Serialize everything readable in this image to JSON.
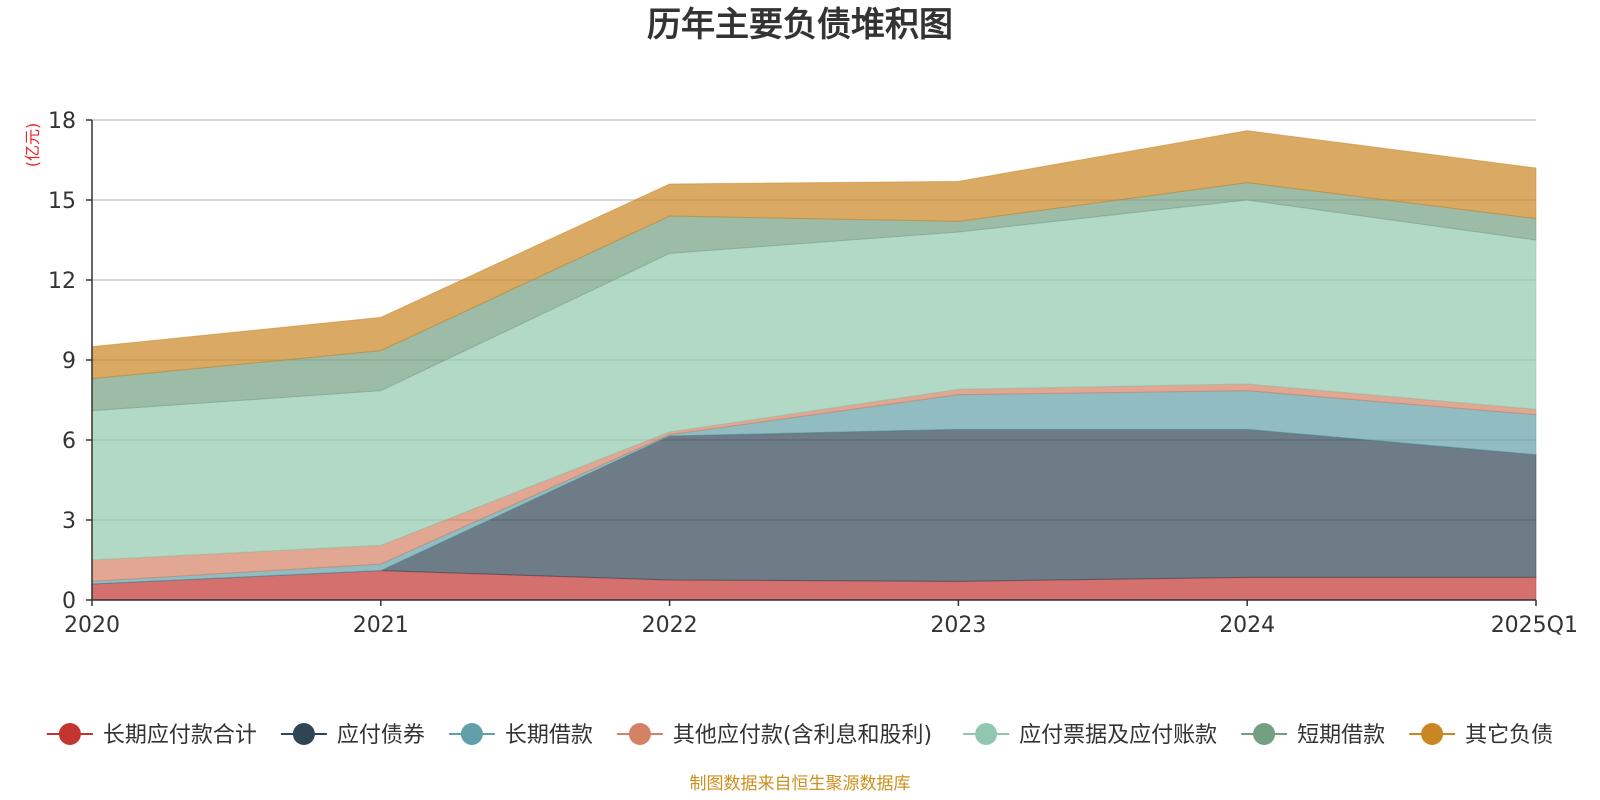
{
  "chart_data": {
    "type": "area",
    "stacked": true,
    "title": "历年主要负债堆积图",
    "unit_label": "(亿元)",
    "source_note": "制图数据来自恒生聚源数据库",
    "categories": [
      "2020",
      "2021",
      "2022",
      "2023",
      "2024",
      "2025Q1"
    ],
    "ylim": [
      0,
      18
    ],
    "yticks": [
      0,
      3,
      6,
      9,
      12,
      15,
      18
    ],
    "grid": true,
    "legend_position": "bottom",
    "series": [
      {
        "name": "长期应付款合计",
        "color": "#c23531",
        "values": [
          0.6,
          1.1,
          0.75,
          0.7,
          0.85,
          0.85
        ]
      },
      {
        "name": "应付债券",
        "color": "#2f4554",
        "values": [
          0.0,
          0.0,
          5.4,
          5.7,
          5.55,
          4.6
        ]
      },
      {
        "name": "长期借款",
        "color": "#61a0a8",
        "values": [
          0.1,
          0.25,
          0.05,
          1.3,
          1.45,
          1.5
        ]
      },
      {
        "name": "其他应付款(含利息和股利)",
        "color": "#d48265",
        "values": [
          0.8,
          0.7,
          0.1,
          0.2,
          0.25,
          0.2
        ]
      },
      {
        "name": "应付票据及应付账款",
        "color": "#91c7ae",
        "values": [
          5.6,
          5.8,
          6.7,
          5.9,
          6.9,
          6.35
        ]
      },
      {
        "name": "短期借款",
        "color": "#749f83",
        "values": [
          1.2,
          1.5,
          1.4,
          0.4,
          0.65,
          0.8
        ]
      },
      {
        "name": "其它负债",
        "color": "#ca8622",
        "values": [
          1.2,
          1.25,
          1.2,
          1.5,
          1.95,
          1.9
        ]
      }
    ]
  }
}
